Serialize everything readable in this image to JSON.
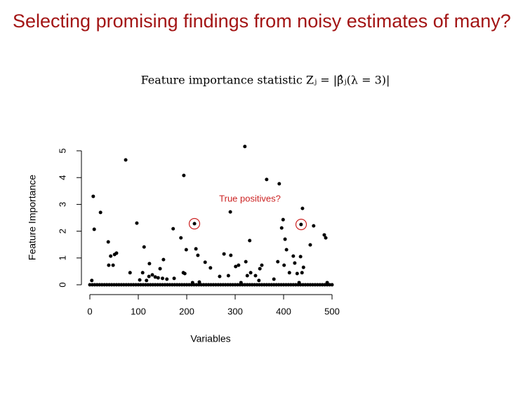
{
  "chart_data": {
    "type": "scatter",
    "title": "Selecting promising findings from noisy estimates of many?",
    "subtitle": "Feature importance statistic Zⱼ = |β̂ⱼ(λ = 3)|",
    "x_label": "Variables",
    "y_label": "Feature Importance",
    "annotation": "True positives?",
    "color": "#000000",
    "title_color": "#a31515",
    "annotation_color": "#cc2222",
    "xlim": [
      0,
      500
    ],
    "ylim": [
      0,
      5
    ],
    "xticks": [
      0,
      100,
      200,
      300,
      400,
      500
    ],
    "yticks": [
      0,
      1,
      2,
      3,
      4,
      5
    ],
    "x": [
      4,
      7,
      9,
      22,
      38,
      39,
      43,
      48,
      51,
      55,
      74,
      83,
      97,
      103,
      109,
      112,
      117,
      122,
      123,
      129,
      135,
      141,
      145,
      150,
      152,
      159,
      172,
      174,
      188,
      193,
      194,
      196,
      199,
      212,
      216,
      219,
      223,
      226,
      238,
      249,
      268,
      277,
      286,
      290,
      291,
      301,
      307,
      312,
      320,
      322,
      325,
      330,
      332,
      342,
      349,
      351,
      355,
      365,
      380,
      388,
      391,
      396,
      399,
      401,
      403,
      406,
      412,
      420,
      423,
      428,
      432,
      435,
      436,
      438,
      439,
      441,
      455,
      462,
      484,
      487,
      490,
      0,
      5,
      10,
      15,
      20,
      25,
      30,
      35,
      40,
      45,
      50,
      55,
      60,
      65,
      70,
      75,
      80,
      85,
      90,
      95,
      100,
      105,
      110,
      115,
      120,
      125,
      130,
      135,
      140,
      145,
      150,
      155,
      160,
      165,
      170,
      175,
      180,
      185,
      190,
      195,
      200,
      205,
      210,
      215,
      220,
      225,
      230,
      235,
      240,
      245,
      250,
      255,
      260,
      265,
      270,
      275,
      280,
      285,
      290,
      295,
      300,
      305,
      310,
      315,
      320,
      325,
      330,
      335,
      340,
      345,
      350,
      355,
      360,
      365,
      370,
      375,
      380,
      385,
      390,
      395,
      400,
      405,
      410,
      415,
      420,
      425,
      430,
      435,
      440,
      445,
      450,
      455,
      460,
      465,
      470,
      475,
      480,
      485,
      490,
      495,
      500
    ],
    "values": [
      0.16,
      3.3,
      2.07,
      2.7,
      1.6,
      0.73,
      1.07,
      0.73,
      1.13,
      1.18,
      4.66,
      0.45,
      2.3,
      0.18,
      0.45,
      1.41,
      0.16,
      0.31,
      0.79,
      0.37,
      0.29,
      0.26,
      0.6,
      0.24,
      0.94,
      0.21,
      2.09,
      0.24,
      1.75,
      0.45,
      4.08,
      0.42,
      1.31,
      0.08,
      2.28,
      1.34,
      1.1,
      0.1,
      0.84,
      0.63,
      0.31,
      1.15,
      0.34,
      2.72,
      1.1,
      0.68,
      0.73,
      0.08,
      5.16,
      0.86,
      0.34,
      1.65,
      0.45,
      0.34,
      0.16,
      0.6,
      0.73,
      3.93,
      0.21,
      0.86,
      3.77,
      2.12,
      2.43,
      0.73,
      1.7,
      1.31,
      0.45,
      1.07,
      0.81,
      0.42,
      0.08,
      1.05,
      2.25,
      0.45,
      2.85,
      0.65,
      1.49,
      2.2,
      1.86,
      1.75,
      0.08,
      0,
      0,
      0,
      0,
      0,
      0,
      0,
      0,
      0,
      0,
      0,
      0,
      0,
      0,
      0,
      0,
      0,
      0,
      0,
      0,
      0,
      0,
      0,
      0,
      0,
      0,
      0,
      0,
      0,
      0,
      0,
      0,
      0,
      0,
      0,
      0,
      0,
      0,
      0,
      0,
      0,
      0,
      0,
      0,
      0,
      0,
      0,
      0,
      0,
      0,
      0,
      0,
      0,
      0,
      0,
      0,
      0,
      0,
      0,
      0,
      0,
      0,
      0,
      0,
      0,
      0,
      0,
      0,
      0,
      0,
      0,
      0,
      0,
      0,
      0,
      0,
      0,
      0,
      0,
      0,
      0,
      0,
      0,
      0,
      0,
      0,
      0,
      0,
      0,
      0,
      0,
      0,
      0,
      0,
      0,
      0,
      0,
      0,
      0,
      0,
      0
    ]
  }
}
